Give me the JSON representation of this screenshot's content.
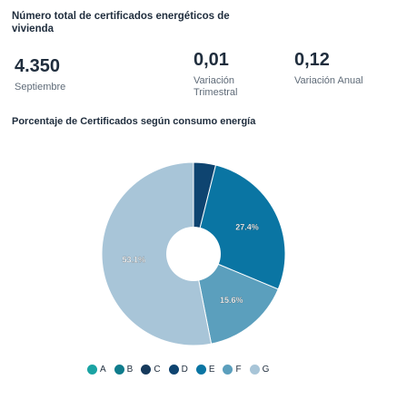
{
  "header": {
    "title": "Número total de certificados energéticos de vivienda"
  },
  "stats": {
    "total": {
      "value": "4.350",
      "label": "Septiembre"
    },
    "quarterly": {
      "value": "0,01",
      "label": "Variación Trimestral"
    },
    "annual": {
      "value": "0,12",
      "label": "Variación Anual"
    }
  },
  "chart_data": {
    "type": "pie",
    "title": "Porcentaje de Certificados según consumo energía",
    "donut": true,
    "categories": [
      "A",
      "B",
      "C",
      "D",
      "E",
      "F",
      "G"
    ],
    "values": [
      0,
      0,
      0,
      3.9,
      27.4,
      15.6,
      53.1
    ],
    "data_labels": [
      "",
      "",
      "",
      "",
      "27.4%",
      "15.6%",
      "53.1%"
    ],
    "colors": [
      "#1aa3a3",
      "#0f7c8c",
      "#163a5c",
      "#0e4470",
      "#0a75a3",
      "#5b9fbd",
      "#a8c5d8"
    ],
    "legend_placement": "bottom"
  }
}
